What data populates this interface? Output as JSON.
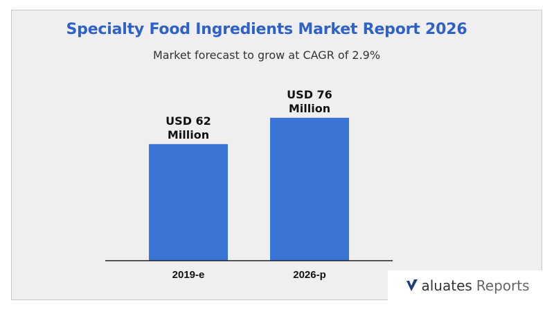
{
  "header": {
    "title": "Specialty Food Ingredients Market Report 2026",
    "subtitle": "Market forecast to grow at CAGR of 2.9%"
  },
  "colors": {
    "title": "#2f62c8",
    "bar": "#3a75d6",
    "axis": "#222222",
    "background": "#efefef"
  },
  "brand": {
    "word_a": "aluates",
    "word_b": "Reports",
    "logo_icon": "v-check-logo-icon"
  },
  "chart_data": {
    "type": "bar",
    "title": "Specialty Food Ingredients Market Report 2026",
    "subtitle": "Market forecast to grow at CAGR of 2.9%",
    "categories": [
      "2019-e",
      "2026-p"
    ],
    "values": [
      62,
      76
    ],
    "data_labels": [
      [
        "USD 62",
        "Million"
      ],
      [
        "USD 76",
        "Million"
      ]
    ],
    "unit": "USD Million",
    "xlabel": "",
    "ylabel": "",
    "ylim": [
      0,
      80
    ],
    "grid": false,
    "legend": "none"
  }
}
